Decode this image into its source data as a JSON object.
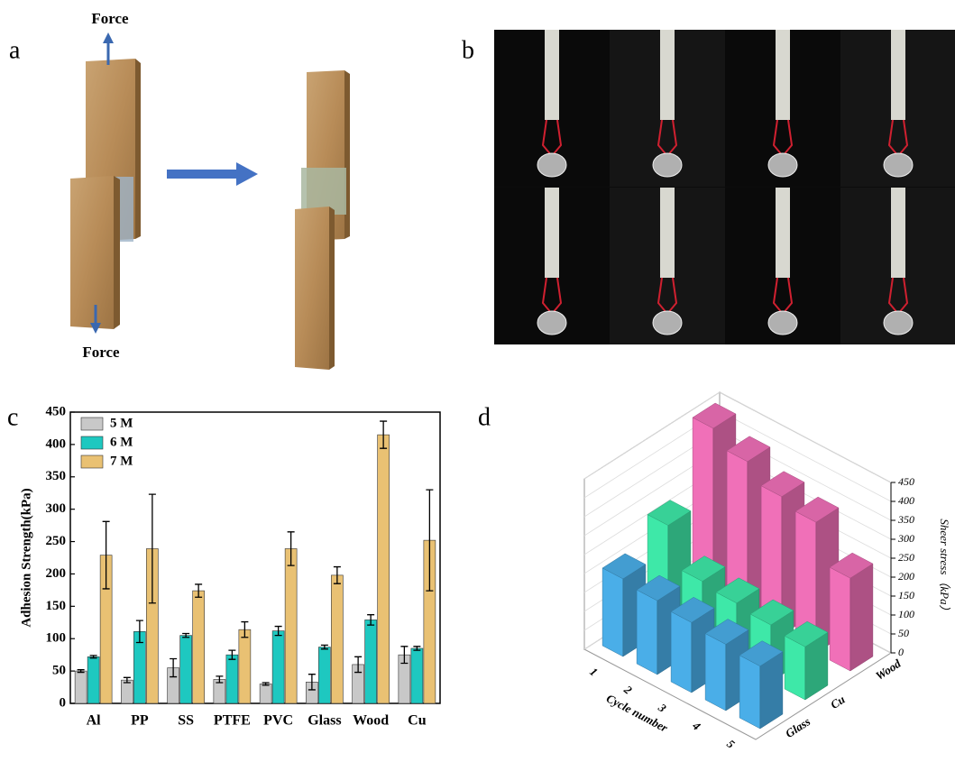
{
  "panels": {
    "a": {
      "label": "a",
      "top_text": "Force",
      "bottom_text": "Force"
    },
    "b": {
      "label": "b"
    },
    "c": {
      "label": "c"
    },
    "d": {
      "label": "d"
    }
  },
  "chart_data": [
    {
      "type": "bar",
      "ylabel": "Adhesion Strength(kPa)",
      "categories": [
        "Al",
        "PP",
        "SS",
        "PTFE",
        "PVC",
        "Glass",
        "Wood",
        "Cu"
      ],
      "series": [
        {
          "name": "5 M",
          "color": "#c8c8c8",
          "values": [
            50,
            36,
            55,
            37,
            30,
            33,
            60,
            75
          ],
          "errors": [
            2,
            4,
            14,
            5,
            2,
            12,
            12,
            13
          ]
        },
        {
          "name": "6 M",
          "color": "#1ec8c0",
          "values": [
            72,
            111,
            105,
            75,
            112,
            87,
            129,
            85
          ],
          "errors": [
            2,
            17,
            3,
            7,
            7,
            3,
            8,
            3
          ]
        },
        {
          "name": "7 M",
          "color": "#e9c173",
          "values": [
            229,
            239,
            174,
            114,
            239,
            198,
            415,
            252
          ],
          "errors": [
            52,
            84,
            10,
            12,
            26,
            13,
            21,
            78
          ]
        }
      ],
      "ylim": [
        0,
        450
      ],
      "yticks": [
        0,
        50,
        100,
        150,
        200,
        250,
        300,
        350,
        400,
        450
      ],
      "legend": "upper left"
    },
    {
      "type": "bar3d",
      "xlabel": "Cycle number",
      "zlabel": "Sheer stress（kPa）",
      "categories": [
        "1",
        "2",
        "3",
        "4",
        "5"
      ],
      "series": [
        {
          "name": "Glass",
          "color": "#4aaee8",
          "values": [
            205,
            195,
            185,
            175,
            165
          ]
        },
        {
          "name": "Cu",
          "color": "#3ee8a8",
          "values": [
            270,
            170,
            160,
            150,
            140
          ]
        },
        {
          "name": "Wood",
          "color": "#f070b8",
          "values": [
            450,
            410,
            365,
            345,
            245
          ]
        }
      ],
      "zlim": [
        0,
        450
      ],
      "zticks": [
        0,
        50,
        100,
        150,
        200,
        250,
        300,
        350,
        400,
        450
      ],
      "grid": true
    }
  ]
}
